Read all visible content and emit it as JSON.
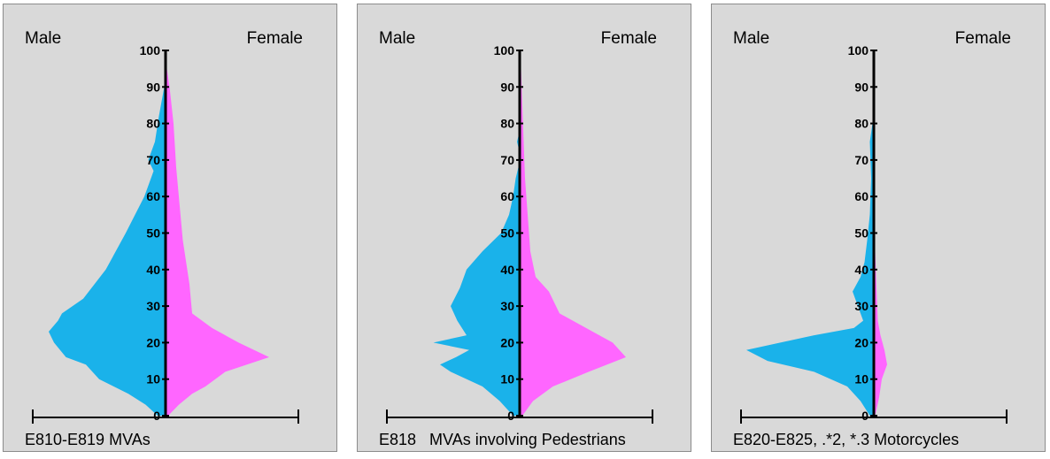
{
  "colors": {
    "male": "#1ab2ea",
    "female": "#ff66ff",
    "axis": "#000000",
    "panel": "#d9d9d9"
  },
  "chart_data": [
    {
      "type": "area",
      "left_label": "Male",
      "right_label": "Female",
      "caption": "E810-E819 MVAs",
      "ylim": [
        0,
        100
      ],
      "y_ticks": [
        "0",
        "10",
        "20",
        "30",
        "40",
        "50",
        "60",
        "70",
        "80",
        "90",
        "100"
      ],
      "x_scale": 100,
      "male": [
        [
          0,
          6
        ],
        [
          3,
          15
        ],
        [
          6,
          28
        ],
        [
          10,
          50
        ],
        [
          14,
          60
        ],
        [
          16,
          75
        ],
        [
          20,
          84
        ],
        [
          23,
          88
        ],
        [
          26,
          81
        ],
        [
          28,
          78
        ],
        [
          32,
          62
        ],
        [
          40,
          45
        ],
        [
          50,
          30
        ],
        [
          60,
          16
        ],
        [
          65,
          11
        ],
        [
          67,
          9
        ],
        [
          70,
          13
        ],
        [
          75,
          8
        ],
        [
          82,
          5
        ],
        [
          90,
          1
        ],
        [
          95,
          0
        ],
        [
          100,
          0
        ]
      ],
      "female": [
        [
          0,
          2
        ],
        [
          3,
          10
        ],
        [
          6,
          20
        ],
        [
          8,
          30
        ],
        [
          12,
          45
        ],
        [
          16,
          78
        ],
        [
          20,
          55
        ],
        [
          24,
          35
        ],
        [
          28,
          20
        ],
        [
          36,
          18
        ],
        [
          48,
          13
        ],
        [
          60,
          10
        ],
        [
          68,
          8
        ],
        [
          80,
          6
        ],
        [
          90,
          3
        ],
        [
          95,
          1
        ],
        [
          100,
          0
        ]
      ]
    },
    {
      "type": "area",
      "left_label": "Male",
      "right_label": "Female",
      "caption": "E818   MVAs involving Pedestrians",
      "ylim": [
        0,
        100
      ],
      "y_ticks": [
        "0",
        "10",
        "20",
        "30",
        "40",
        "50",
        "60",
        "70",
        "80",
        "90",
        "100"
      ],
      "x_scale": 100,
      "male": [
        [
          0,
          5
        ],
        [
          4,
          15
        ],
        [
          8,
          28
        ],
        [
          12,
          52
        ],
        [
          14,
          60
        ],
        [
          16,
          48
        ],
        [
          18,
          38
        ],
        [
          20,
          65
        ],
        [
          22,
          40
        ],
        [
          26,
          47
        ],
        [
          30,
          52
        ],
        [
          35,
          45
        ],
        [
          40,
          40
        ],
        [
          45,
          28
        ],
        [
          50,
          14
        ],
        [
          55,
          8
        ],
        [
          60,
          5
        ],
        [
          65,
          3
        ],
        [
          68,
          1
        ],
        [
          72,
          0
        ],
        [
          75,
          2
        ],
        [
          78,
          0
        ],
        [
          100,
          0
        ]
      ],
      "female": [
        [
          0,
          2
        ],
        [
          4,
          10
        ],
        [
          8,
          25
        ],
        [
          12,
          52
        ],
        [
          16,
          80
        ],
        [
          20,
          70
        ],
        [
          24,
          50
        ],
        [
          28,
          30
        ],
        [
          34,
          22
        ],
        [
          38,
          12
        ],
        [
          45,
          8
        ],
        [
          55,
          6
        ],
        [
          65,
          4
        ],
        [
          75,
          3
        ],
        [
          85,
          2
        ],
        [
          95,
          1
        ],
        [
          100,
          0
        ]
      ]
    },
    {
      "type": "area",
      "left_label": "Male",
      "right_label": "Female",
      "caption": "E820-E825, .*2, *.3 Motorcycles",
      "ylim": [
        0,
        100
      ],
      "y_ticks": [
        "0",
        "10",
        "20",
        "30",
        "40",
        "50",
        "60",
        "70",
        "80",
        "90",
        "100"
      ],
      "x_scale": 100,
      "male": [
        [
          0,
          3
        ],
        [
          4,
          10
        ],
        [
          8,
          20
        ],
        [
          12,
          45
        ],
        [
          15,
          80
        ],
        [
          18,
          96
        ],
        [
          22,
          45
        ],
        [
          24,
          15
        ],
        [
          26,
          8
        ],
        [
          30,
          12
        ],
        [
          34,
          16
        ],
        [
          38,
          10
        ],
        [
          42,
          7
        ],
        [
          48,
          5
        ],
        [
          55,
          3
        ],
        [
          65,
          2
        ],
        [
          75,
          3
        ],
        [
          80,
          1
        ],
        [
          90,
          0
        ],
        [
          100,
          0
        ]
      ],
      "female": [
        [
          0,
          1
        ],
        [
          5,
          4
        ],
        [
          10,
          6
        ],
        [
          14,
          10
        ],
        [
          18,
          8
        ],
        [
          22,
          5
        ],
        [
          26,
          3
        ],
        [
          35,
          2
        ],
        [
          45,
          1
        ],
        [
          60,
          1
        ],
        [
          75,
          1
        ],
        [
          90,
          0
        ],
        [
          100,
          0
        ]
      ]
    }
  ]
}
